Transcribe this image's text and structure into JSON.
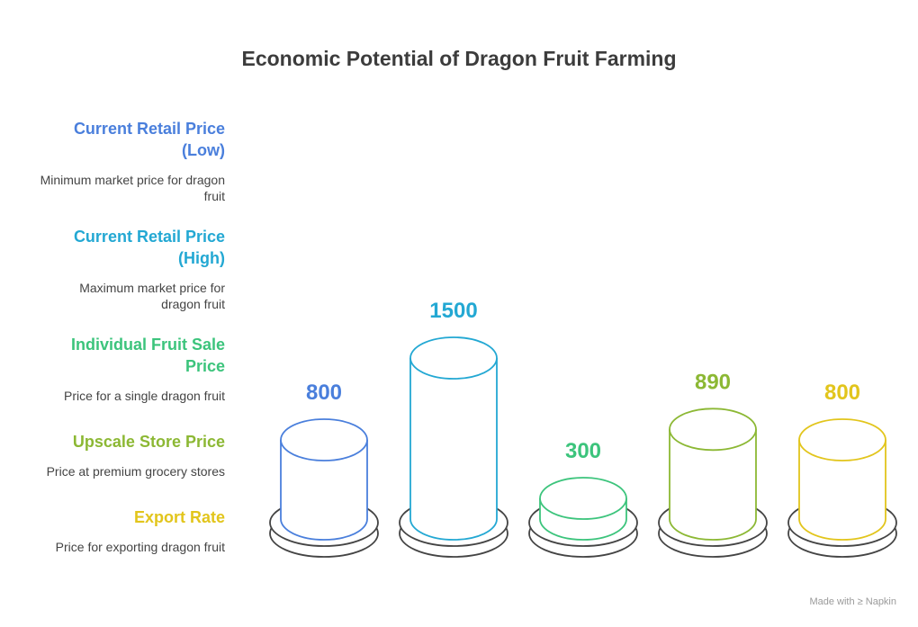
{
  "chart_data": {
    "type": "bar",
    "title": "Economic Potential of Dragon Fruit Farming",
    "categories": [
      "Current Retail Price (Low)",
      "Current Retail Price (High)",
      "Individual Fruit Sale Price",
      "Upscale Store Price",
      "Export Rate"
    ],
    "values": [
      800,
      1500,
      300,
      890,
      800
    ],
    "descriptions": [
      "Minimum market price for dragon fruit",
      "Maximum market price for dragon fruit",
      "Price for a single dragon fruit",
      "Price at premium grocery stores",
      "Price for exporting dragon fruit"
    ],
    "colors": [
      "#4a7fdc",
      "#23a8d3",
      "#3cc47c",
      "#8cb834",
      "#e2c51c"
    ],
    "legend_position": "left",
    "grid": false
  },
  "legend": {
    "items": [
      {
        "title_line1": "Current Retail Price",
        "title_line2": "(Low)",
        "desc_line1": "Minimum market price for dragon",
        "desc_line2": "fruit"
      },
      {
        "title_line1": "Current Retail Price",
        "title_line2": "(High)",
        "desc_line1": "Maximum market price for",
        "desc_line2": "dragon fruit"
      },
      {
        "title_line1": "Individual Fruit Sale",
        "title_line2": "Price",
        "desc_line1": "Price for a single dragon fruit",
        "desc_line2": ""
      },
      {
        "title_line1": "Upscale Store Price",
        "title_line2": "",
        "desc_line1": "Price at premium grocery stores",
        "desc_line2": ""
      },
      {
        "title_line1": "Export Rate",
        "title_line2": "",
        "desc_line1": "Price for exporting dragon fruit",
        "desc_line2": ""
      }
    ]
  },
  "watermark": "Made with ≥ Napkin"
}
